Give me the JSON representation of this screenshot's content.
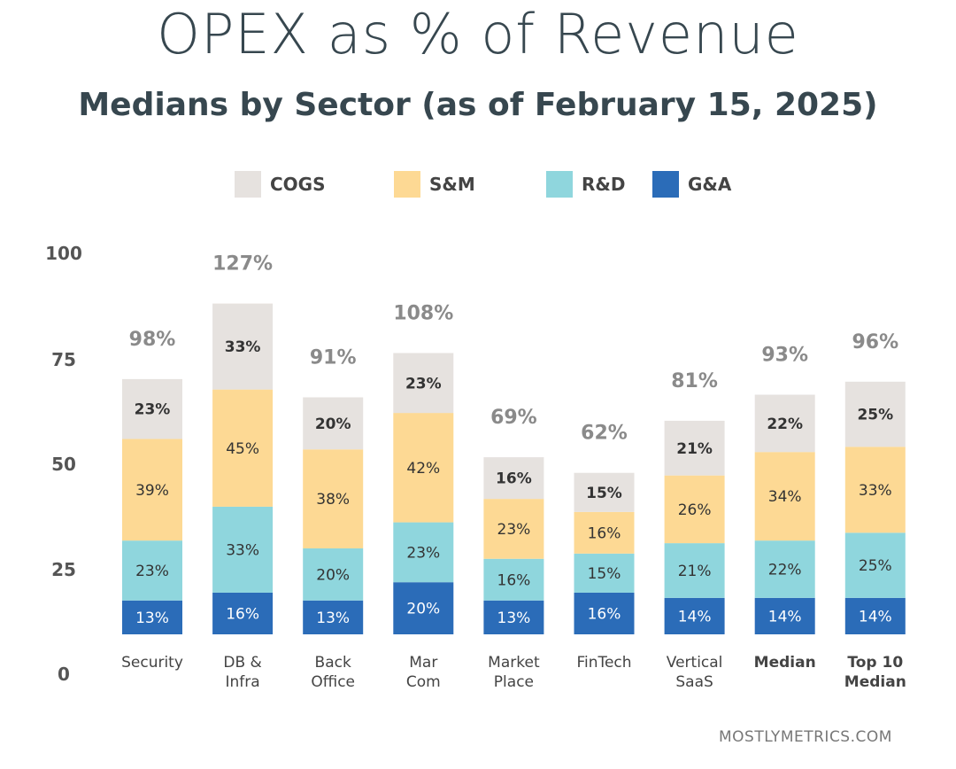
{
  "chart_data": {
    "type": "bar",
    "stacked": true,
    "title": "OPEX as % of Revenue",
    "subtitle": "Medians by Sector (as of February 15, 2025)",
    "categories": [
      [
        "Security"
      ],
      [
        "DB &",
        "Infra"
      ],
      [
        "Back",
        "Office"
      ],
      [
        "Mar",
        "Com"
      ],
      [
        "Market",
        "Place"
      ],
      [
        "FinTech"
      ],
      [
        "Vertical",
        "SaaS"
      ],
      [
        "Median"
      ],
      [
        "Top 10",
        "Median"
      ]
    ],
    "bold_categories": [
      7,
      8
    ],
    "series": [
      {
        "name": "G&A",
        "color": "#2b6cb8",
        "values": [
          13,
          16,
          13,
          20,
          13,
          16,
          14,
          14,
          14
        ]
      },
      {
        "name": "R&D",
        "color": "#8fd6dd",
        "values": [
          23,
          33,
          20,
          23,
          16,
          15,
          21,
          22,
          25
        ]
      },
      {
        "name": "S&M",
        "color": "#fdd994",
        "values": [
          39,
          45,
          38,
          42,
          23,
          16,
          26,
          34,
          33
        ]
      },
      {
        "name": "COGS",
        "color": "#e6e2df",
        "values": [
          23,
          33,
          20,
          23,
          16,
          15,
          21,
          22,
          25
        ]
      }
    ],
    "totals": [
      "98%",
      "127%",
      "91%",
      "108%",
      "69%",
      "62%",
      "81%",
      "93%",
      "96%"
    ],
    "legend_order": [
      "COGS",
      "S&M",
      "R&D",
      "G&A"
    ],
    "legend_position": "top",
    "y_ticks": [
      "100",
      "75",
      "50",
      "25",
      "0"
    ],
    "grid": false
  },
  "source": "MOSTLYMETRICS.COM"
}
